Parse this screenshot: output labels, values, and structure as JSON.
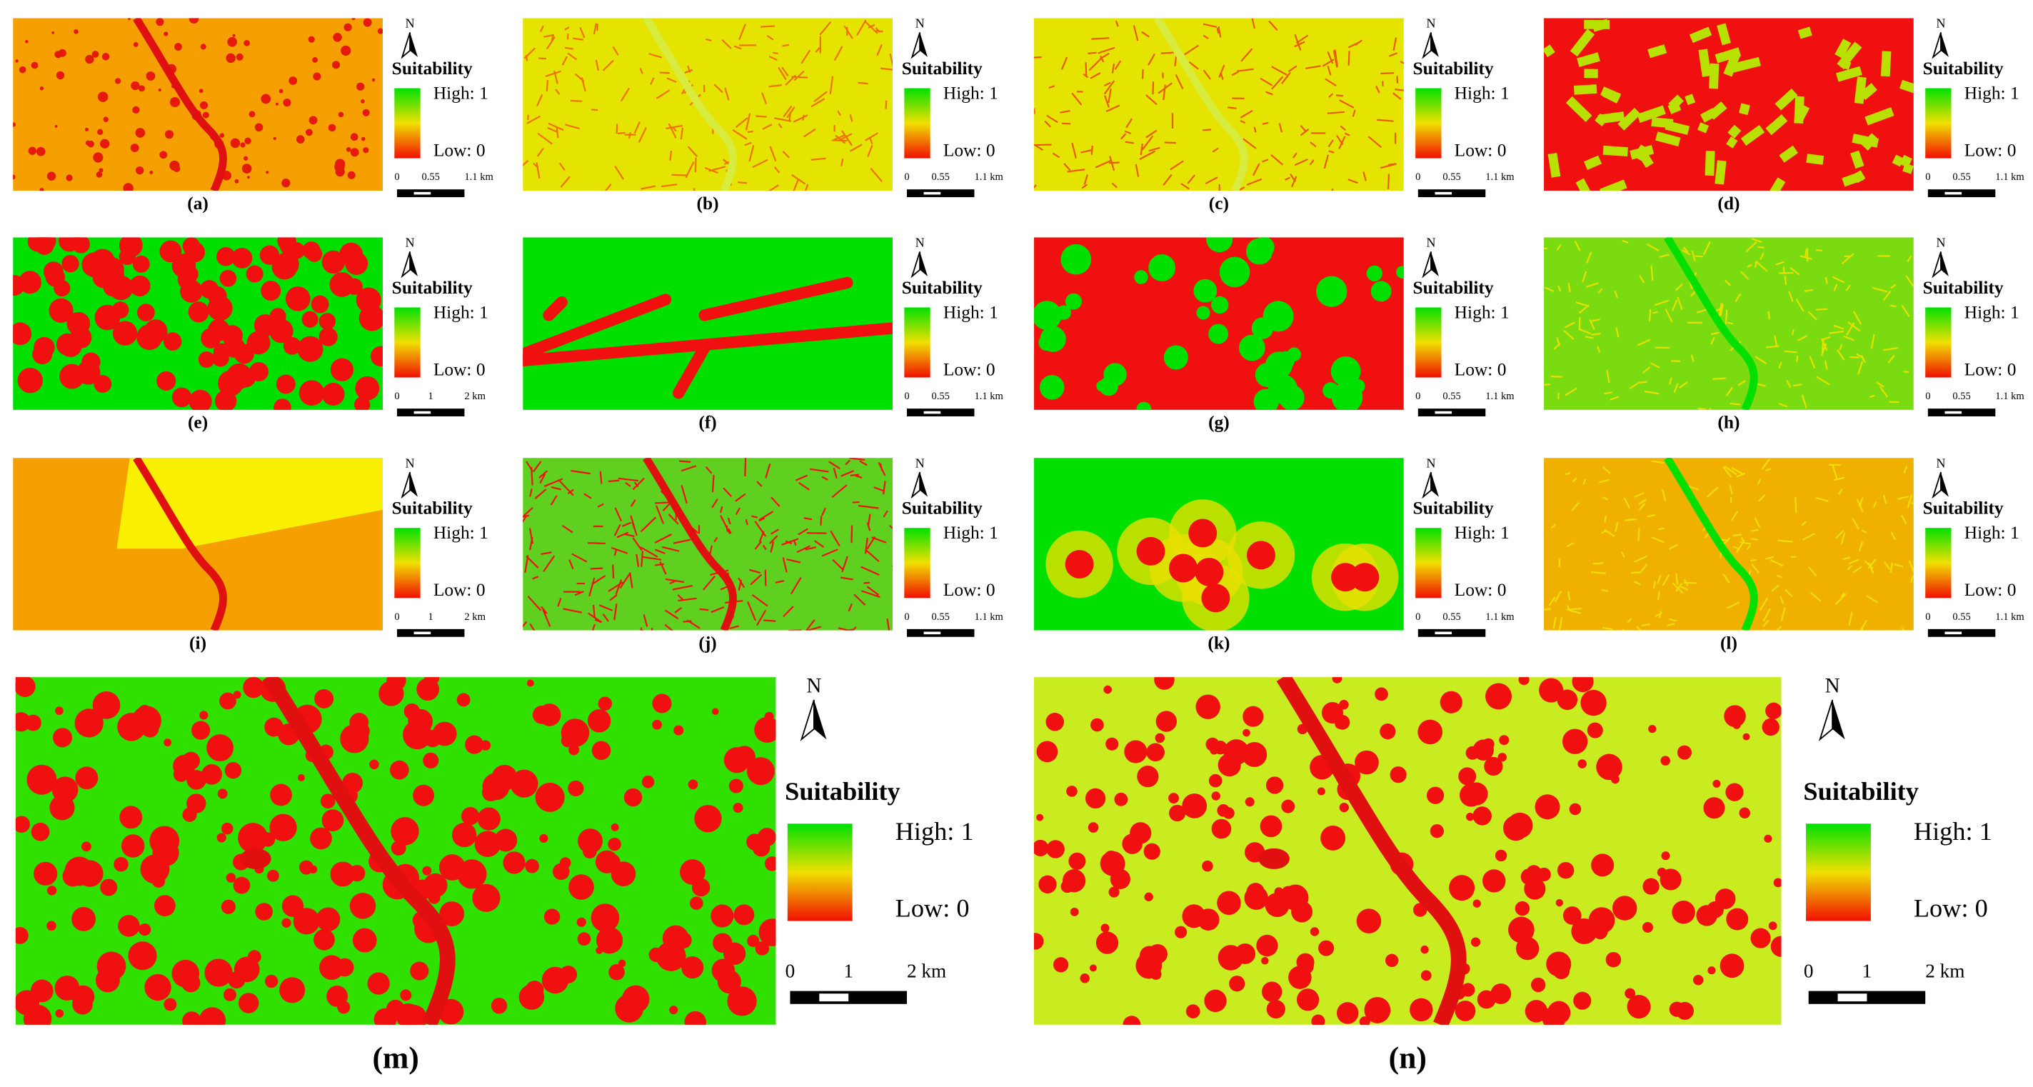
{
  "panels": [
    {
      "label": "(a)",
      "north": "N",
      "legend_title": "Suitability",
      "high": "High: 1",
      "low": "Low: 0",
      "scale": [
        "0",
        "0.55",
        "1.1 km"
      ]
    },
    {
      "label": "(b)",
      "north": "N",
      "legend_title": "Suitability",
      "high": "High: 1",
      "low": "Low: 0",
      "scale": [
        "0",
        "0.55",
        "1.1 km"
      ]
    },
    {
      "label": "(c)",
      "north": "N",
      "legend_title": "Suitability",
      "high": "High: 1",
      "low": "Low: 0",
      "scale": [
        "0",
        "0.55",
        "1.1 km"
      ]
    },
    {
      "label": "(d)",
      "north": "N",
      "legend_title": "Suitability",
      "high": "High: 1",
      "low": "Low: 0",
      "scale": [
        "0",
        "0.55",
        "1.1 km"
      ]
    },
    {
      "label": "(e)",
      "north": "N",
      "legend_title": "Suitability",
      "high": "High: 1",
      "low": "Low: 0",
      "scale": [
        "0",
        "1",
        "2 km"
      ]
    },
    {
      "label": "(f)",
      "north": "N",
      "legend_title": "Suitability",
      "high": "High: 1",
      "low": "Low: 0",
      "scale": [
        "0",
        "0.55",
        "1.1 km"
      ]
    },
    {
      "label": "(g)",
      "north": "N",
      "legend_title": "Suitability",
      "high": "High: 1",
      "low": "Low: 0",
      "scale": [
        "0",
        "0.55",
        "1.1 km"
      ]
    },
    {
      "label": "(h)",
      "north": "N",
      "legend_title": "Suitability",
      "high": "High: 1",
      "low": "Low: 0",
      "scale": [
        "0",
        "0.55",
        "1.1 km"
      ]
    },
    {
      "label": "(i)",
      "north": "N",
      "legend_title": "Suitability",
      "high": "High: 1",
      "low": "Low: 0",
      "scale": [
        "0",
        "1",
        "2 km"
      ]
    },
    {
      "label": "(j)",
      "north": "N",
      "legend_title": "Suitability",
      "high": "High: 1",
      "low": "Low: 0",
      "scale": [
        "0",
        "0.55",
        "1.1 km"
      ]
    },
    {
      "label": "(k)",
      "north": "N",
      "legend_title": "Suitability",
      "high": "High: 1",
      "low": "Low: 0",
      "scale": [
        "0",
        "0.55",
        "1.1 km"
      ]
    },
    {
      "label": "(l)",
      "north": "N",
      "legend_title": "Suitability",
      "high": "High: 1",
      "low": "Low: 0",
      "scale": [
        "0",
        "0.55",
        "1.1 km"
      ]
    },
    {
      "label": "(m)",
      "north": "N",
      "legend_title": "Suitability",
      "high": "High: 1",
      "low": "Low: 0",
      "scale": [
        "0",
        "1",
        "2 km"
      ]
    },
    {
      "label": "(n)",
      "north": "N",
      "legend_title": "Suitability",
      "high": "High: 1",
      "low": "Low: 0",
      "scale": [
        "0",
        "1",
        "2 km"
      ]
    }
  ]
}
